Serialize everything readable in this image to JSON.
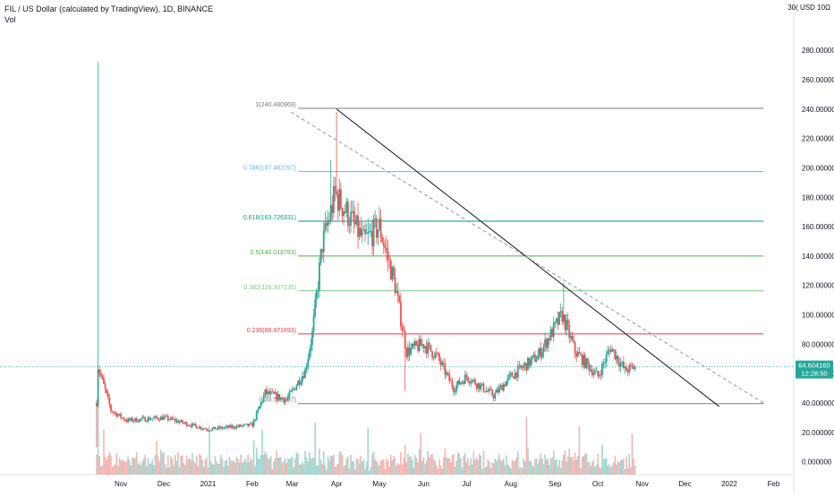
{
  "header": {
    "title": "FIL / US Dollar (calculated by TradingView), 1D, BINANCE",
    "volume_label": "Vol",
    "axis_menu": "30( USD 10Ω"
  },
  "colors": {
    "up": "#26a69a",
    "down": "#ef5350",
    "vol_up": "#a5d6d0",
    "vol_down": "#f5b5b3",
    "fib_0": "#787b86",
    "fib_0236": "#f23645",
    "fib_0382": "#81c784",
    "fib_05": "#4caf50",
    "fib_0618": "#089981",
    "fib_0786": "#64b5f6",
    "fib_1": "#787b86",
    "price_tag": "#26a69a"
  },
  "price_tag": {
    "value": "64.604160",
    "countdown": "12:28:50"
  },
  "chart_data": {
    "type": "candlestick",
    "title": "FIL / US Dollar (calculated by TradingView), 1D, BINANCE",
    "y_axis": {
      "scale": "linear",
      "range": [
        -10,
        310
      ],
      "ticks": [
        "0.000000",
        "20.000000",
        "40.000000",
        "60.000000",
        "80.000000",
        "100.000000",
        "120.000000",
        "140.000000",
        "160.000000",
        "180.000000",
        "200.000000",
        "220.000000",
        "240.000000",
        "260.000000",
        "280.000000"
      ],
      "tick_values": [
        0,
        20,
        40,
        60,
        80,
        100,
        120,
        140,
        160,
        180,
        200,
        220,
        240,
        260,
        280
      ]
    },
    "x_axis": {
      "ticks": [
        "Nov",
        "Dec",
        "2021",
        "Feb",
        "Mar",
        "Apr",
        "May",
        "Jun",
        "Jul",
        "Aug",
        "Sep",
        "Oct",
        "Nov",
        "Dec",
        "2022",
        "Feb"
      ],
      "tick_dates": [
        "2020-11-01",
        "2020-12-01",
        "2021-01-01",
        "2021-02-01",
        "2021-03-01",
        "2021-04-01",
        "2021-05-01",
        "2021-06-01",
        "2021-07-01",
        "2021-08-01",
        "2021-09-01",
        "2021-10-01",
        "2021-11-01",
        "2021-12-01",
        "2022-01-01",
        "2022-02-01"
      ],
      "range": [
        "2020-10-15",
        "2022-02-12"
      ]
    },
    "series": [
      {
        "name": "FIL / US Dollar",
        "kind": "ohlc_anchor",
        "points": [
          {
            "date": "2020-10-15",
            "price": 40
          },
          {
            "date": "2020-10-16",
            "price": 65
          },
          {
            "date": "2020-10-25",
            "price": 35
          },
          {
            "date": "2020-11-05",
            "price": 28
          },
          {
            "date": "2020-12-01",
            "price": 30
          },
          {
            "date": "2021-01-01",
            "price": 22
          },
          {
            "date": "2021-02-01",
            "price": 25
          },
          {
            "date": "2021-02-10",
            "price": 47
          },
          {
            "date": "2021-02-25",
            "price": 42
          },
          {
            "date": "2021-03-10",
            "price": 62
          },
          {
            "date": "2021-03-15",
            "price": 87
          },
          {
            "date": "2021-03-22",
            "price": 148
          },
          {
            "date": "2021-03-31",
            "price": 182
          },
          {
            "date": "2021-04-08",
            "price": 170
          },
          {
            "date": "2021-04-20",
            "price": 150
          },
          {
            "date": "2021-05-01",
            "price": 160
          },
          {
            "date": "2021-05-12",
            "price": 120
          },
          {
            "date": "2021-05-20",
            "price": 75
          },
          {
            "date": "2021-06-01",
            "price": 80
          },
          {
            "date": "2021-06-10",
            "price": 72
          },
          {
            "date": "2021-06-22",
            "price": 50
          },
          {
            "date": "2021-07-01",
            "price": 58
          },
          {
            "date": "2021-07-20",
            "price": 45
          },
          {
            "date": "2021-08-01",
            "price": 58
          },
          {
            "date": "2021-08-20",
            "price": 72
          },
          {
            "date": "2021-09-06",
            "price": 100
          },
          {
            "date": "2021-09-15",
            "price": 75
          },
          {
            "date": "2021-10-01",
            "price": 58
          },
          {
            "date": "2021-10-10",
            "price": 78
          },
          {
            "date": "2021-10-20",
            "price": 62
          },
          {
            "date": "2021-10-27",
            "price": 64.6
          }
        ]
      }
    ],
    "fib_levels": [
      {
        "label": "1(240.480969)",
        "value": 240.480969,
        "color_key": "fib_1"
      },
      {
        "label": "0.786(197.482297)",
        "value": 197.482297,
        "color_key": "fib_0786"
      },
      {
        "label": "0.618(163.726331)",
        "value": 163.726331,
        "color_key": "fib_0618"
      },
      {
        "label": "0.5(140.016783)",
        "value": 140.016783,
        "color_key": "fib_05"
      },
      {
        "label": "0.382(116.307235)",
        "value": 116.307235,
        "color_key": "fib_0382"
      },
      {
        "label": "0.236(86.971693)",
        "value": 86.971693,
        "color_key": "fib_0236"
      },
      {
        "label": "0(39.552597)",
        "value": 39.552597,
        "color_key": "fib_0"
      }
    ],
    "fib_range": [
      "2021-03-05",
      "2022-01-25"
    ],
    "trendlines": [
      {
        "style": "solid",
        "from": {
          "date": "2021-04-01",
          "price": 240
        },
        "to": {
          "date": "2021-12-25",
          "price": 37.5
        }
      },
      {
        "style": "dashed",
        "from": {
          "date": "2021-02-28",
          "price": 238
        },
        "to": {
          "date": "2022-01-25",
          "price": 40
        }
      }
    ],
    "current_price": 64.60416,
    "grid": false,
    "legend": "none"
  }
}
